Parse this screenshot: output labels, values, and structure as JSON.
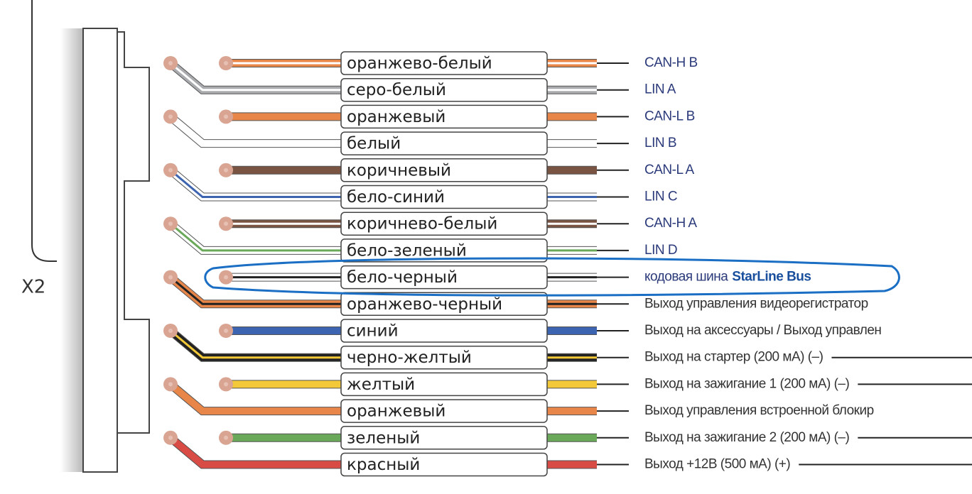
{
  "connector_label": "X2",
  "wires": [
    {
      "label": "оранжево-белый",
      "description": "CAN-H B",
      "color": "#e8864a",
      "stripe": "#ffffff"
    },
    {
      "label": "серо-белый",
      "description": "LIN A",
      "color": "#a9abae",
      "stripe": "#ffffff"
    },
    {
      "label": "оранжевый",
      "description": "CAN-L B",
      "color": "#e8864a"
    },
    {
      "label": "белый",
      "description": "LIN B",
      "color": "#ffffff"
    },
    {
      "label": "коричневый",
      "description": "CAN-L A",
      "color": "#7a5443"
    },
    {
      "label": "бело-синий",
      "description": "LIN C",
      "color": "#ffffff",
      "stripe": "#3d64b0"
    },
    {
      "label": "коричнево-белый",
      "description": "CAN-H A",
      "color": "#7a5443",
      "stripe": "#ffffff"
    },
    {
      "label": "бело-зеленый",
      "description": "LIN D",
      "color": "#ffffff",
      "stripe": "#6aa85a"
    },
    {
      "label": "бело-черный",
      "description": "кодовая шина",
      "highlight": "StarLine Bus",
      "color": "#ffffff",
      "stripe": "#222222"
    },
    {
      "label": "оранжево-черный",
      "description": "Выход управления видеорегистратор",
      "color": "#e8864a",
      "stripe": "#222222"
    },
    {
      "label": "синий",
      "description": "Выход на аксессуары / Выход управлен",
      "color": "#3d64b0"
    },
    {
      "label": "черно-желтый",
      "description": "Выход на стартер (200 мА) (–)",
      "color": "#222222",
      "stripe": "#f3c93a"
    },
    {
      "label": "желтый",
      "description": "Выход на зажигание 1 (200 мА) (–)",
      "color": "#f3c93a"
    },
    {
      "label": "оранжевый",
      "description": "Выход управления встроенной блокир",
      "color": "#e8864a"
    },
    {
      "label": "зеленый",
      "description": "Выход на зажигание 2 (200 мА) (–)",
      "color": "#6aa85a"
    },
    {
      "label": "красный",
      "description": "Выход +12В (500 мА) (+)",
      "color": "#d94b45"
    }
  ]
}
